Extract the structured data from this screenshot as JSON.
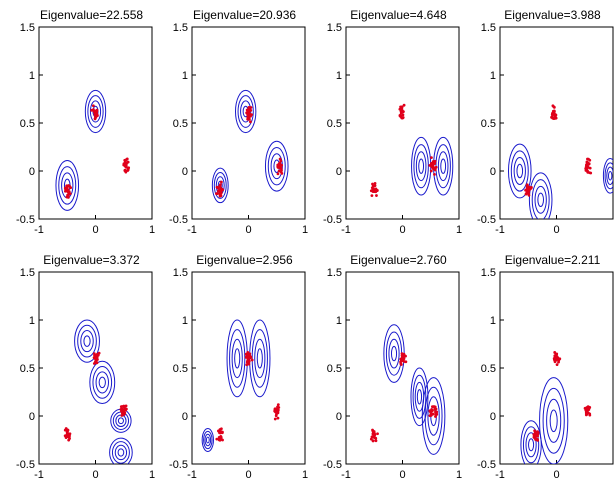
{
  "chart_data": [
    {
      "type": "contour",
      "title": "Eigenvalue=22.558",
      "xlim": [
        -1,
        1
      ],
      "ylim": [
        -0.5,
        1.5
      ],
      "xticks": [
        "-1",
        "0",
        "1"
      ],
      "yticks": [
        "-0.5",
        "0",
        "0.5",
        "1",
        "1.5"
      ],
      "contours": [
        {
          "cx": 0,
          "cy": 0.62,
          "rx": 0.18,
          "ry": 0.22
        },
        {
          "cx": -0.5,
          "cy": -0.15,
          "rx": 0.2,
          "ry": 0.26
        }
      ],
      "scatter": [
        {
          "cx": 0,
          "cy": 0.6
        },
        {
          "cx": -0.5,
          "cy": -0.2
        },
        {
          "cx": 0.55,
          "cy": 0.05
        }
      ]
    },
    {
      "type": "contour",
      "title": "Eigenvalue=20.936",
      "xlim": [
        -1,
        1
      ],
      "ylim": [
        -0.5,
        1.5
      ],
      "xticks": [
        "-1",
        "0",
        "1"
      ],
      "yticks": [
        "-0.5",
        "0",
        "0.5",
        "1",
        "1.5"
      ],
      "contours": [
        {
          "cx": -0.05,
          "cy": 0.62,
          "rx": 0.18,
          "ry": 0.22
        },
        {
          "cx": 0.5,
          "cy": 0.05,
          "rx": 0.2,
          "ry": 0.26
        },
        {
          "cx": -0.5,
          "cy": -0.15,
          "rx": 0.14,
          "ry": 0.18
        }
      ],
      "scatter": [
        {
          "cx": 0,
          "cy": 0.6
        },
        {
          "cx": -0.5,
          "cy": -0.2
        },
        {
          "cx": 0.55,
          "cy": 0.05
        }
      ]
    },
    {
      "type": "contour",
      "title": "Eigenvalue=4.648",
      "xlim": [
        -1,
        1
      ],
      "ylim": [
        -0.5,
        1.5
      ],
      "xticks": [
        "-1",
        "0",
        "1"
      ],
      "yticks": [
        "-0.5",
        "0",
        "0.5",
        "1",
        "1.5"
      ],
      "contours": [
        {
          "cx": 0.33,
          "cy": 0.05,
          "rx": 0.17,
          "ry": 0.3
        },
        {
          "cx": 0.72,
          "cy": 0.05,
          "rx": 0.17,
          "ry": 0.3
        }
      ],
      "scatter": [
        {
          "cx": 0,
          "cy": 0.6
        },
        {
          "cx": -0.5,
          "cy": -0.2
        },
        {
          "cx": 0.55,
          "cy": 0.05
        }
      ]
    },
    {
      "type": "contour",
      "title": "Eigenvalue=3.988",
      "xlim": [
        -1,
        1
      ],
      "ylim": [
        -0.5,
        1.5
      ],
      "xticks": [
        "-1",
        "0",
        "1"
      ],
      "yticks": [
        "-0.5",
        "0",
        "0.5",
        "1",
        "1.5"
      ],
      "contours": [
        {
          "cx": -0.65,
          "cy": 0,
          "rx": 0.2,
          "ry": 0.28
        },
        {
          "cx": -0.28,
          "cy": -0.3,
          "rx": 0.2,
          "ry": 0.28
        },
        {
          "cx": 0.95,
          "cy": -0.05,
          "rx": 0.12,
          "ry": 0.18
        }
      ],
      "scatter": [
        {
          "cx": -0.05,
          "cy": 0.6
        },
        {
          "cx": -0.5,
          "cy": -0.2
        },
        {
          "cx": 0.55,
          "cy": 0.05
        }
      ]
    },
    {
      "type": "contour",
      "title": "Eigenvalue=3.372",
      "xlim": [
        -1,
        1
      ],
      "ylim": [
        -0.5,
        1.5
      ],
      "xticks": [
        "-1",
        "0",
        "1"
      ],
      "yticks": [
        "-0.5",
        "0",
        "0.5",
        "1",
        "1.5"
      ],
      "contours": [
        {
          "cx": -0.15,
          "cy": 0.78,
          "rx": 0.22,
          "ry": 0.22
        },
        {
          "cx": 0.12,
          "cy": 0.35,
          "rx": 0.22,
          "ry": 0.22
        },
        {
          "cx": 0.45,
          "cy": -0.05,
          "rx": 0.18,
          "ry": 0.12
        },
        {
          "cx": 0.45,
          "cy": -0.38,
          "rx": 0.2,
          "ry": 0.15
        }
      ],
      "scatter": [
        {
          "cx": 0,
          "cy": 0.6
        },
        {
          "cx": -0.5,
          "cy": -0.2
        },
        {
          "cx": 0.5,
          "cy": 0.05
        }
      ]
    },
    {
      "type": "contour",
      "title": "Eigenvalue=2.956",
      "xlim": [
        -1,
        1
      ],
      "ylim": [
        -0.5,
        1.5
      ],
      "xticks": [
        "-1",
        "0",
        "1"
      ],
      "yticks": [
        "-0.5",
        "0",
        "0.5",
        "1",
        "1.5"
      ],
      "contours": [
        {
          "cx": -0.2,
          "cy": 0.6,
          "rx": 0.18,
          "ry": 0.4
        },
        {
          "cx": 0.2,
          "cy": 0.6,
          "rx": 0.18,
          "ry": 0.4
        },
        {
          "cx": -0.72,
          "cy": -0.25,
          "rx": 0.1,
          "ry": 0.12
        }
      ],
      "scatter": [
        {
          "cx": 0,
          "cy": 0.6
        },
        {
          "cx": -0.5,
          "cy": -0.2
        },
        {
          "cx": 0.5,
          "cy": 0.05
        }
      ]
    },
    {
      "type": "contour",
      "title": "Eigenvalue=2.760",
      "xlim": [
        -1,
        1
      ],
      "ylim": [
        -0.5,
        1.5
      ],
      "xticks": [
        "-1",
        "0",
        "1"
      ],
      "yticks": [
        "-0.5",
        "0",
        "0.5",
        "1",
        "1.5"
      ],
      "contours": [
        {
          "cx": -0.15,
          "cy": 0.65,
          "rx": 0.18,
          "ry": 0.3
        },
        {
          "cx": 0.55,
          "cy": 0,
          "rx": 0.2,
          "ry": 0.4
        },
        {
          "cx": 0.3,
          "cy": 0.2,
          "rx": 0.15,
          "ry": 0.3
        }
      ],
      "scatter": [
        {
          "cx": 0,
          "cy": 0.6
        },
        {
          "cx": -0.5,
          "cy": -0.2
        },
        {
          "cx": 0.55,
          "cy": 0.05
        }
      ]
    },
    {
      "type": "contour",
      "title": "Eigenvalue=2.211",
      "xlim": [
        -1,
        1
      ],
      "ylim": [
        -0.5,
        1.5
      ],
      "xticks": [
        "-1",
        "0",
        "1"
      ],
      "yticks": [
        "-0.5",
        "0",
        "0.5",
        "1",
        "1.5"
      ],
      "contours": [
        {
          "cx": -0.05,
          "cy": -0.05,
          "rx": 0.25,
          "ry": 0.45
        },
        {
          "cx": -0.45,
          "cy": -0.3,
          "rx": 0.18,
          "ry": 0.25
        }
      ],
      "scatter": [
        {
          "cx": 0,
          "cy": 0.6
        },
        {
          "cx": -0.35,
          "cy": -0.2
        },
        {
          "cx": 0.55,
          "cy": 0.05
        }
      ]
    }
  ]
}
